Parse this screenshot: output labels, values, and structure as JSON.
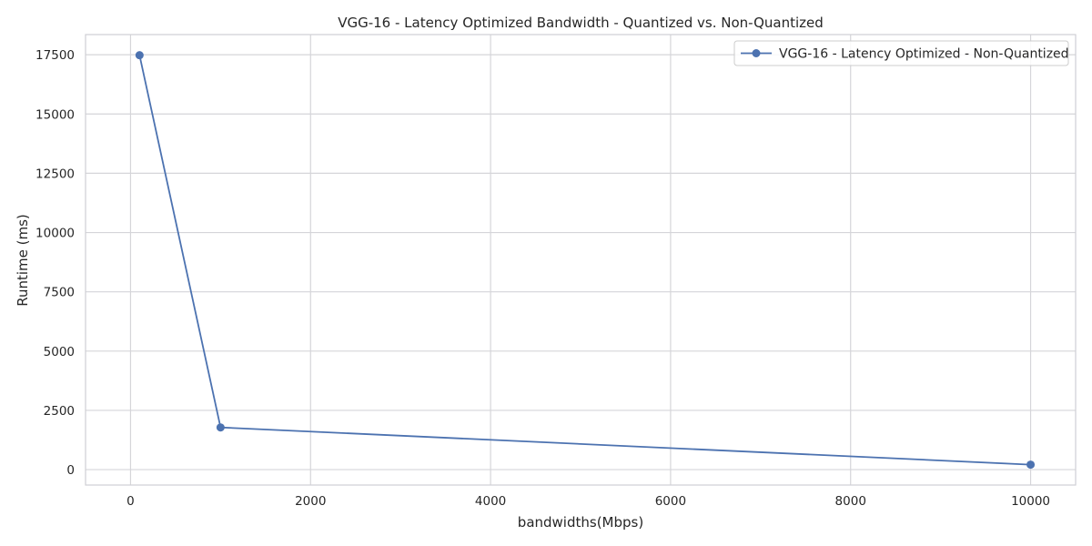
{
  "chart_data": {
    "type": "line",
    "title": "VGG-16 - Latency Optimized Bandwidth - Quantized vs. Non-Quantized",
    "xlabel": "bandwidths(Mbps)",
    "ylabel": "Runtime (ms)",
    "xlim": [
      -500,
      10500
    ],
    "ylim": [
      -650,
      18350
    ],
    "xticks": [
      0,
      2000,
      4000,
      6000,
      8000,
      10000
    ],
    "yticks": [
      0,
      2500,
      5000,
      7500,
      10000,
      12500,
      15000,
      17500
    ],
    "grid": true,
    "legend_position": "top-right",
    "series": [
      {
        "name": "VGG-16 - Latency Optimized - Non-Quantized",
        "color": "#4c72b0",
        "marker": "circle",
        "x": [
          100,
          1000,
          10000
        ],
        "y": [
          17480,
          1780,
          210
        ]
      }
    ]
  },
  "colors": {
    "grid": "#d5d5d9",
    "axes_edge": "#cfcfd4",
    "text": "#262626"
  }
}
